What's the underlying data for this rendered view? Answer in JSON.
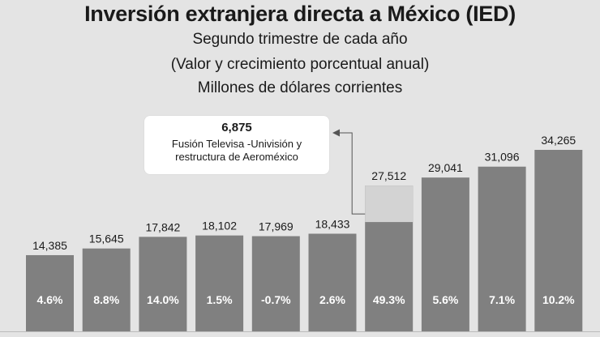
{
  "header": {
    "title": "Inversión extranjera directa a México (IED)",
    "subtitle_1": "Segundo trimestre de cada año",
    "subtitle_2": "(Valor y crecimiento porcentual anual)",
    "subtitle_3": "Millones de dólares corrientes"
  },
  "callout": {
    "value": "6,875",
    "note": "Fusión Televisa -Univisión y restructura de Aeroméxico"
  },
  "colors": {
    "bar": "#808080",
    "highlight": "#d3d3d3",
    "background": "#e4e4e4"
  },
  "chart_data": {
    "type": "bar",
    "title": "Inversión extranjera directa a México (IED)",
    "values": [
      14385,
      15645,
      17842,
      18102,
      17969,
      18433,
      27512,
      29041,
      31096,
      34265
    ],
    "value_labels": [
      "14,385",
      "15,645",
      "17,842",
      "18,102",
      "17,969",
      "18,433",
      "27,512",
      "29,041",
      "31,096",
      "34,265"
    ],
    "growth_labels": [
      "4.6%",
      "8.8%",
      "14.0%",
      "1.5%",
      "-0.7%",
      "2.6%",
      "49.3%",
      "5.6%",
      "7.1%",
      "10.2%"
    ],
    "highlight": {
      "index": 6,
      "value": 6875
    },
    "ylim": [
      0,
      34265
    ]
  }
}
